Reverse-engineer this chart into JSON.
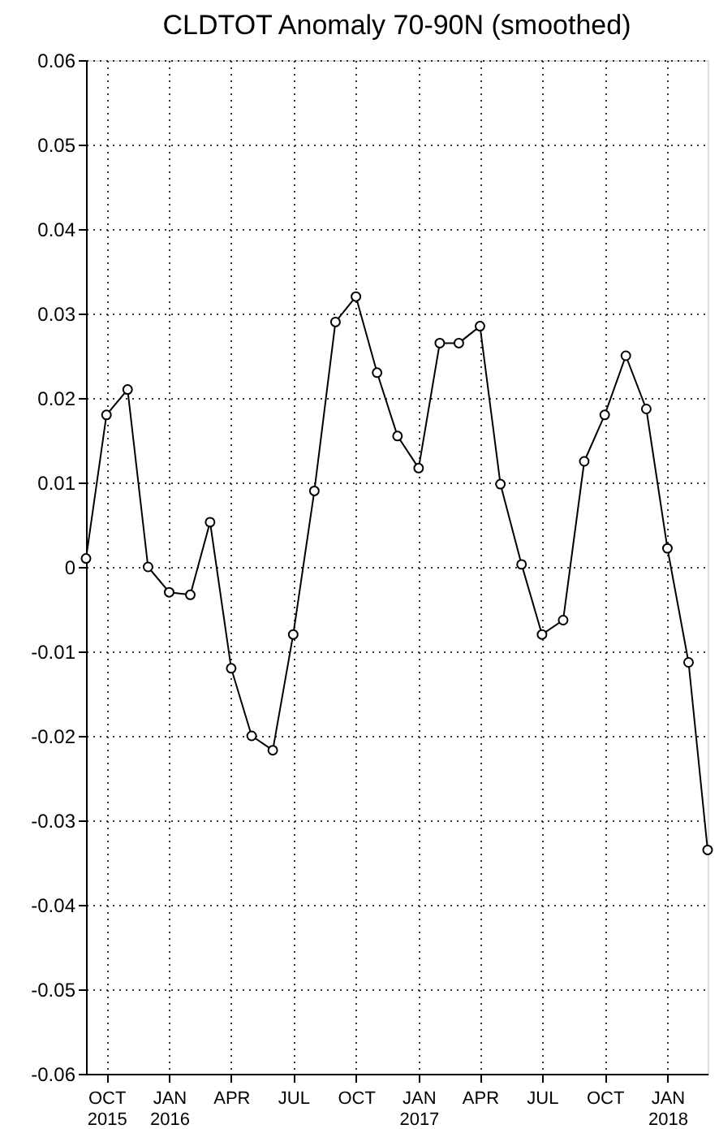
{
  "chart_data": {
    "type": "line",
    "title": "CLDTOT Anomaly 70-90N (smoothed)",
    "x": [
      "2015-09",
      "2015-10",
      "2015-11",
      "2015-12",
      "2016-01",
      "2016-02",
      "2016-03",
      "2016-04",
      "2016-05",
      "2016-06",
      "2016-07",
      "2016-08",
      "2016-09",
      "2016-10",
      "2016-11",
      "2016-12",
      "2017-01",
      "2017-02",
      "2017-03",
      "2017-04",
      "2017-05",
      "2017-06",
      "2017-07",
      "2017-08",
      "2017-09",
      "2017-10",
      "2017-11",
      "2017-12",
      "2018-01",
      "2018-02",
      "2018-03"
    ],
    "series": [
      {
        "color": "#000000",
        "values": [
          0.001,
          0.018,
          0.021,
          0.0,
          -0.003,
          -0.0033,
          0.0053,
          -0.012,
          -0.02,
          -0.0217,
          -0.008,
          0.009,
          0.029,
          0.032,
          0.023,
          0.0155,
          0.0117,
          0.0265,
          0.0265,
          0.0285,
          0.0098,
          0.0003,
          -0.008,
          -0.0063,
          0.0125,
          0.018,
          0.025,
          0.0187,
          0.0022,
          -0.0113,
          -0.0335
        ]
      }
    ],
    "xlim": [
      "2015-09",
      "2018-03"
    ],
    "xticks": [
      {
        "value": "2015-10",
        "label": "OCT\n2015"
      },
      {
        "value": "2016-01",
        "label": "JAN\n2016"
      },
      {
        "value": "2016-04",
        "label": "APR"
      },
      {
        "value": "2016-07",
        "label": "JUL"
      },
      {
        "value": "2016-10",
        "label": "OCT"
      },
      {
        "value": "2017-01",
        "label": "JAN\n2017"
      },
      {
        "value": "2017-04",
        "label": "APR"
      },
      {
        "value": "2017-07",
        "label": "JUL"
      },
      {
        "value": "2017-10",
        "label": "OCT"
      },
      {
        "value": "2018-01",
        "label": "JAN\n2018"
      }
    ],
    "ylim": [
      -0.06,
      0.06
    ],
    "yticks": [
      {
        "value": -0.06,
        "label": "-0.06"
      },
      {
        "value": -0.05,
        "label": "-0.05"
      },
      {
        "value": -0.04,
        "label": "-0.04"
      },
      {
        "value": -0.03,
        "label": "-0.03"
      },
      {
        "value": -0.02,
        "label": "-0.02"
      },
      {
        "value": -0.01,
        "label": "-0.01"
      },
      0,
      {
        "value": 0.01,
        "label": "0.01"
      },
      {
        "value": 0.02,
        "label": "0.02"
      },
      {
        "value": 0.03,
        "label": "0.03"
      },
      {
        "value": 0.04,
        "label": "0.04"
      },
      {
        "value": 0.05,
        "label": "0.05"
      },
      {
        "value": 0.06,
        "label": "0.06"
      }
    ],
    "grid": true,
    "marker": "circle",
    "line_style": "solid"
  }
}
